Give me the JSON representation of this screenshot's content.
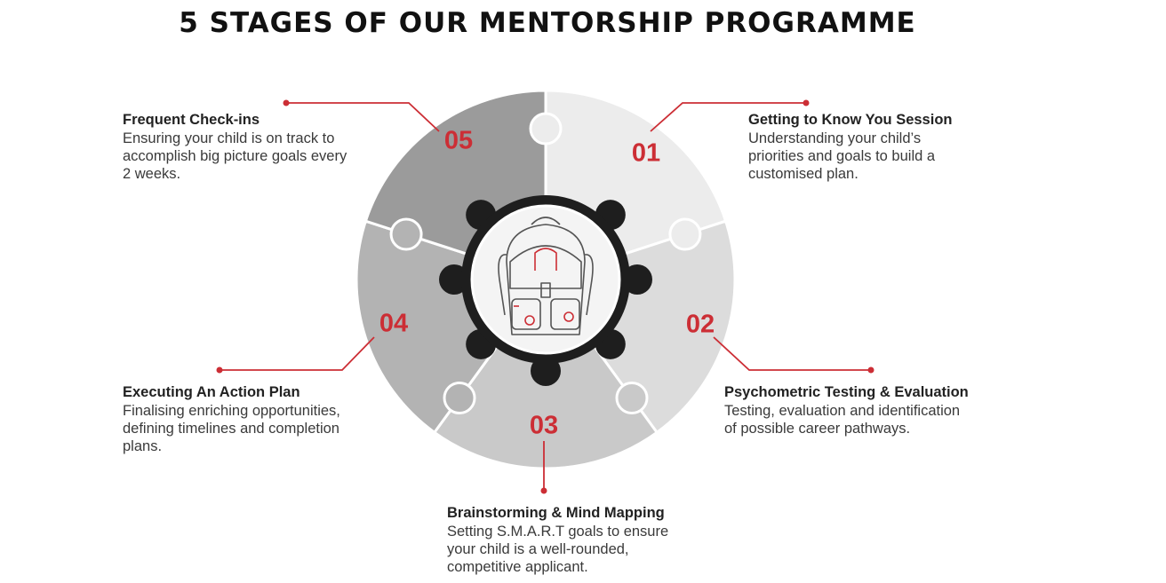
{
  "title": "5 STAGES OF OUR MENTORSHIP PROGRAMME",
  "accent_color": "#cc2e35",
  "center_icon": "backpack-icon",
  "stages": [
    {
      "number": "01",
      "title": "Getting to Know You Session",
      "lines": [
        "Understanding your child’s",
        "priorities and goals to build a",
        "customised plan."
      ],
      "fill": "#ececec"
    },
    {
      "number": "02",
      "title": "Psychometric Testing & Evaluation",
      "lines": [
        "Testing, evaluation and identification",
        "of possible career pathways."
      ],
      "fill": "#dcdcdc"
    },
    {
      "number": "03",
      "title": "Brainstorming & Mind Mapping",
      "lines": [
        "Setting S.M.A.R.T goals to ensure",
        "your child is a well-rounded,",
        "competitive applicant."
      ],
      "fill": "#c9c9c9"
    },
    {
      "number": "04",
      "title": "Executing An Action Plan",
      "lines": [
        "Finalising enriching opportunities,",
        "defining timelines and completion",
        "plans."
      ],
      "fill": "#b3b3b3"
    },
    {
      "number": "05",
      "title": "Frequent Check-ins",
      "lines": [
        "Ensuring your child is on track to",
        "accomplish big picture goals every",
        "2 weeks."
      ],
      "fill": "#9b9b9b"
    }
  ]
}
